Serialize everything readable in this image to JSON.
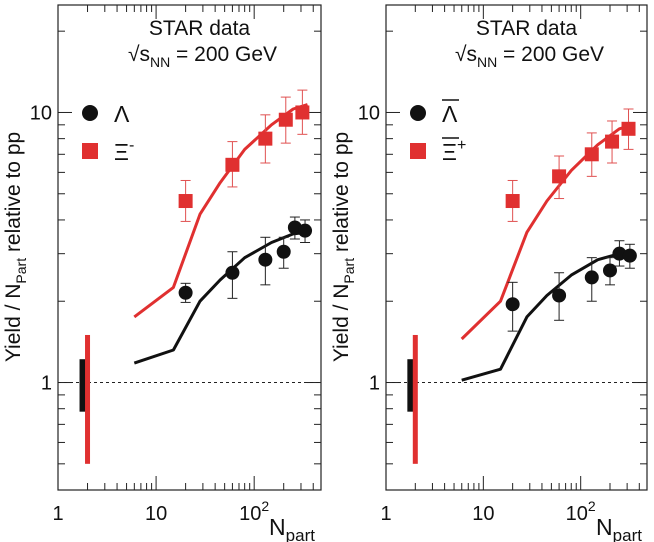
{
  "figure": {
    "y_label_main": "Yield / N",
    "y_label_sub": "Part",
    "y_label_tail": " relative to pp",
    "x_label_main": "N",
    "x_label_sub": "part"
  },
  "chart_data": [
    {
      "type": "scatter",
      "panel": "left",
      "header_line1": "STAR data",
      "header_sqrt": "√s",
      "header_sub": "NN",
      "header_tail": " = 200 GeV",
      "xscale": "log",
      "yscale": "log",
      "xlim": [
        1,
        480
      ],
      "ylim": [
        0.4,
        25
      ],
      "xticks": [
        {
          "v": 1,
          "label": "1"
        },
        {
          "v": 10,
          "label": "10"
        },
        {
          "v": 100,
          "label": "10",
          "sup": "2"
        }
      ],
      "yticks": [
        {
          "v": 1,
          "label": "1"
        },
        {
          "v": 10,
          "label": "10"
        }
      ],
      "reference_line": 1,
      "legend": [
        {
          "symbol": "circle",
          "color": "#111111",
          "label": "Λ",
          "sup": ""
        },
        {
          "symbol": "square",
          "color": "#e03030",
          "label": "Ξ",
          "sup": "-"
        }
      ],
      "series": [
        {
          "symbol": "circle",
          "color": "#111111",
          "points": [
            [
              20,
              2.15,
              1.98,
              2.33
            ],
            [
              60,
              2.55,
              2.05,
              3.05
            ],
            [
              130,
              2.85,
              2.3,
              3.45
            ],
            [
              200,
              3.05,
              2.65,
              3.45
            ],
            [
              260,
              3.75,
              3.4,
              4.1
            ],
            [
              330,
              3.65,
              3.3,
              4.0
            ]
          ]
        },
        {
          "symbol": "square",
          "color": "#e03030",
          "points": [
            [
              20,
              4.7,
              3.95,
              5.6
            ],
            [
              60,
              6.4,
              5.3,
              7.8
            ],
            [
              130,
              8.0,
              6.5,
              9.8
            ],
            [
              210,
              9.4,
              7.7,
              11.4
            ],
            [
              310,
              10.0,
              8.3,
              12.1
            ]
          ]
        }
      ],
      "curves": [
        {
          "color": "#111111",
          "points": [
            [
              6,
              1.18
            ],
            [
              15,
              1.32
            ],
            [
              28,
              2.0
            ],
            [
              45,
              2.4
            ],
            [
              80,
              2.9
            ],
            [
              150,
              3.3
            ],
            [
              250,
              3.55
            ],
            [
              350,
              3.6
            ]
          ]
        },
        {
          "color": "#e03030",
          "points": [
            [
              6,
              1.75
            ],
            [
              15,
              2.25
            ],
            [
              28,
              4.2
            ],
            [
              45,
              5.5
            ],
            [
              80,
              7.3
            ],
            [
              150,
              9.0
            ],
            [
              250,
              10.3
            ],
            [
              350,
              10.7
            ]
          ]
        }
      ],
      "syst_bars": [
        {
          "color": "#111111",
          "x": 1.8,
          "low": 0.78,
          "high": 1.22
        },
        {
          "color": "#e03030",
          "x": 2.0,
          "low": 0.5,
          "high": 1.5
        }
      ]
    },
    {
      "type": "scatter",
      "panel": "right",
      "header_line1": "STAR data",
      "header_sqrt": "√s",
      "header_sub": "NN",
      "header_tail": " = 200 GeV",
      "xscale": "log",
      "yscale": "log",
      "xlim": [
        1,
        480
      ],
      "ylim": [
        0.4,
        25
      ],
      "xticks": [
        {
          "v": 1,
          "label": "1"
        },
        {
          "v": 10,
          "label": "10"
        },
        {
          "v": 100,
          "label": "10",
          "sup": "2"
        }
      ],
      "yticks": [
        {
          "v": 1,
          "label": "1"
        },
        {
          "v": 10,
          "label": "10"
        }
      ],
      "reference_line": 1,
      "legend": [
        {
          "symbol": "circle",
          "color": "#111111",
          "label": "Λ",
          "sup": "",
          "overline": true
        },
        {
          "symbol": "square",
          "color": "#e03030",
          "label": "Ξ",
          "sup": "+",
          "overline": true
        }
      ],
      "series": [
        {
          "symbol": "circle",
          "color": "#111111",
          "points": [
            [
              20,
              1.95,
              1.55,
              2.35
            ],
            [
              60,
              2.1,
              1.7,
              2.55
            ],
            [
              130,
              2.45,
              2.0,
              2.9
            ],
            [
              200,
              2.6,
              2.3,
              2.9
            ],
            [
              250,
              3.0,
              2.7,
              3.35
            ],
            [
              320,
              2.95,
              2.65,
              3.25
            ]
          ]
        },
        {
          "symbol": "square",
          "color": "#e03030",
          "points": [
            [
              20,
              4.7,
              3.95,
              5.6
            ],
            [
              60,
              5.8,
              4.8,
              6.9
            ],
            [
              130,
              7.0,
              5.8,
              8.4
            ],
            [
              210,
              7.8,
              6.5,
              9.3
            ],
            [
              310,
              8.7,
              7.3,
              10.3
            ]
          ]
        }
      ],
      "curves": [
        {
          "color": "#111111",
          "points": [
            [
              6,
              1.02
            ],
            [
              15,
              1.12
            ],
            [
              28,
              1.75
            ],
            [
              45,
              2.1
            ],
            [
              80,
              2.5
            ],
            [
              150,
              2.85
            ],
            [
              250,
              3.0
            ],
            [
              350,
              3.0
            ]
          ]
        },
        {
          "color": "#e03030",
          "points": [
            [
              6,
              1.45
            ],
            [
              15,
              2.0
            ],
            [
              28,
              3.6
            ],
            [
              45,
              4.7
            ],
            [
              80,
              6.1
            ],
            [
              150,
              7.6
            ],
            [
              250,
              8.7
            ],
            [
              350,
              9.0
            ]
          ]
        }
      ],
      "syst_bars": [
        {
          "color": "#111111",
          "x": 1.8,
          "low": 0.78,
          "high": 1.22
        },
        {
          "color": "#e03030",
          "x": 2.0,
          "low": 0.5,
          "high": 1.5
        }
      ]
    }
  ]
}
